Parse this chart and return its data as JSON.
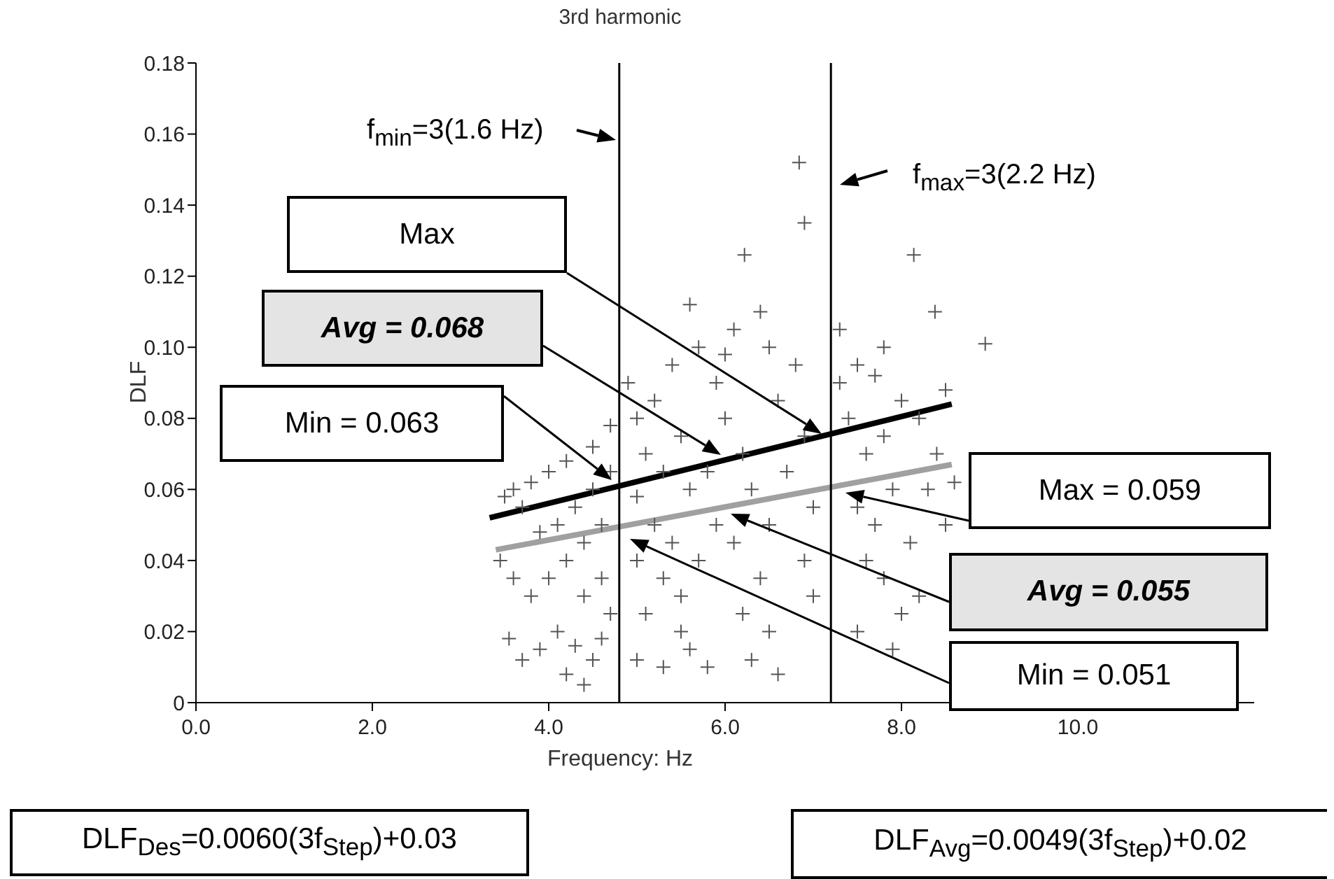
{
  "chart_data": {
    "type": "scatter",
    "title": "3rd harmonic",
    "xlabel": "Frequency: Hz",
    "ylabel": "DLF",
    "xlim": [
      0,
      12
    ],
    "xticks": [
      {
        "value": 0,
        "label": "0.0"
      },
      {
        "value": 2,
        "label": "2.0"
      },
      {
        "value": 4,
        "label": "4.0"
      },
      {
        "value": 6,
        "label": "6.0"
      },
      {
        "value": 8,
        "label": "8.0"
      },
      {
        "value": 10,
        "label": "10.0"
      }
    ],
    "ylim": [
      0,
      0.18
    ],
    "yticks": [
      0,
      0.02,
      0.04,
      0.06,
      0.08,
      {
        "value": 0.1,
        "label": "0.10"
      },
      0.12,
      0.14,
      0.16,
      0.18
    ],
    "series": [
      {
        "marker": "cross",
        "color": "#555555",
        "x": [
          3.5,
          3.6,
          3.7,
          3.45,
          3.6,
          3.8,
          3.55,
          3.7,
          3.9,
          4.1,
          4.3,
          4.5,
          4.2,
          4.4,
          4.6,
          4.0,
          4.2,
          4.4,
          4.6,
          4.1,
          3.9,
          4.3,
          4.5,
          4.7,
          4.2,
          4.0,
          4.5,
          4.7,
          3.8,
          4.6,
          4.7,
          4.4,
          4.9,
          5.0,
          5.2,
          5.1,
          5.3,
          5.0,
          5.2,
          5.4,
          5.0,
          5.3,
          5.1,
          5.5,
          5.0,
          5.3,
          5.6,
          5.8,
          5.5,
          5.7,
          5.9,
          5.6,
          5.8,
          5.5,
          5.4,
          5.7,
          5.6,
          5.9,
          6.0,
          6.1,
          6.22,
          6.2,
          6.3,
          6.1,
          6.4,
          6.2,
          6.5,
          6.3,
          6.6,
          6.5,
          6.7,
          6.6,
          6.5,
          6.8,
          6.9,
          7.0,
          6.9,
          7.0,
          6.84,
          6.9,
          6.4,
          6.0,
          7.3,
          7.5,
          7.7,
          7.4,
          7.6,
          7.8,
          8.0,
          8.2,
          7.5,
          7.7,
          7.9,
          8.1,
          8.3,
          8.5,
          7.6,
          7.8,
          8.0,
          7.5,
          7.9,
          8.2,
          8.6,
          8.14,
          8.38,
          7.3,
          7.8,
          8.95,
          8.4,
          8.5
        ],
        "values": [
          0.058,
          0.06,
          0.055,
          0.04,
          0.035,
          0.03,
          0.018,
          0.012,
          0.015,
          0.02,
          0.016,
          0.012,
          0.008,
          0.005,
          0.018,
          0.035,
          0.04,
          0.045,
          0.05,
          0.05,
          0.048,
          0.055,
          0.06,
          0.065,
          0.068,
          0.065,
          0.072,
          0.078,
          0.062,
          0.035,
          0.025,
          0.03,
          0.09,
          0.08,
          0.085,
          0.07,
          0.065,
          0.058,
          0.05,
          0.045,
          0.04,
          0.035,
          0.025,
          0.02,
          0.012,
          0.01,
          0.015,
          0.01,
          0.03,
          0.04,
          0.05,
          0.06,
          0.065,
          0.075,
          0.095,
          0.1,
          0.112,
          0.09,
          0.08,
          0.105,
          0.126,
          0.07,
          0.06,
          0.045,
          0.035,
          0.025,
          0.02,
          0.012,
          0.008,
          0.05,
          0.065,
          0.085,
          0.1,
          0.095,
          0.075,
          0.055,
          0.04,
          0.03,
          0.152,
          0.135,
          0.11,
          0.098,
          0.09,
          0.095,
          0.092,
          0.08,
          0.07,
          0.075,
          0.085,
          0.08,
          0.055,
          0.05,
          0.06,
          0.045,
          0.06,
          0.05,
          0.04,
          0.035,
          0.025,
          0.02,
          0.015,
          0.03,
          0.062,
          0.126,
          0.11,
          0.105,
          0.1,
          0.101,
          0.07,
          0.088
        ]
      },
      {
        "type": "line",
        "marker": "none",
        "color": "#000000",
        "x": [
          3.33,
          8.57
        ],
        "values": [
          0.052,
          0.084
        ]
      },
      {
        "type": "line",
        "marker": "none",
        "color": "#a0a0a0",
        "x": [
          3.4,
          8.57
        ],
        "values": [
          0.043,
          0.067
        ]
      }
    ],
    "ref_lines": [
      {
        "axis": "x",
        "value": 4.8,
        "color": "#000000"
      },
      {
        "axis": "x",
        "value": 7.2,
        "color": "#000000"
      }
    ],
    "annotations": [
      "Max",
      "Avg = 0.068",
      "Min = 0.063",
      "Max = 0.059",
      "Avg = 0.055",
      "Min = 0.051",
      "DLF$_{Des}$=0.0060(3f$_{Step}$)+0.03",
      "DLF$_{Avg}$=0.0049(3f$_{Step}$)+0.02",
      "f$_{min}$=3(1.6 Hz)",
      "f$_{max}$=3(2.2 Hz)"
    ]
  }
}
